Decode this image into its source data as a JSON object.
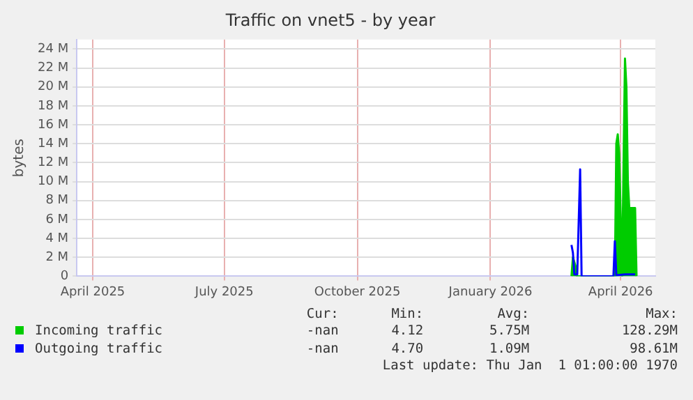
{
  "chart_data": {
    "type": "area",
    "title": "Traffic on vnet5 - by year",
    "ylabel": "bytes",
    "xlim": [
      "2025-03-21",
      "2026-04-25"
    ],
    "xticks": [
      {
        "value": "2025-04-01",
        "label": "April 2025"
      },
      {
        "value": "2025-07-01",
        "label": "July 2025"
      },
      {
        "value": "2025-10-01",
        "label": "October 2025"
      },
      {
        "value": "2026-01-01",
        "label": "January 2026"
      },
      {
        "value": "2026-04-01",
        "label": "April 2026"
      }
    ],
    "ylim": [
      0,
      25
    ],
    "yticks": [
      0,
      {
        "value": 2,
        "label": "2 M"
      },
      {
        "value": 4,
        "label": "4 M"
      },
      {
        "value": 6,
        "label": "6 M"
      },
      {
        "value": 8,
        "label": "8 M"
      },
      {
        "value": 10,
        "label": "10 M"
      },
      {
        "value": 12,
        "label": "12 M"
      },
      {
        "value": 14,
        "label": "14 M"
      },
      {
        "value": 16,
        "label": "16 M"
      },
      {
        "value": 18,
        "label": "18 M"
      },
      {
        "value": 20,
        "label": "20 M"
      },
      {
        "value": 22,
        "label": "22 M"
      },
      {
        "value": 24,
        "label": "24 M"
      }
    ],
    "grid": true,
    "legend": "bottom left",
    "marker": "none",
    "series": [
      {
        "name": "Incoming traffic",
        "type": "area",
        "color": "#00cc00",
        "x": [
          "2026-02-26",
          "2026-02-27",
          "2026-03-01",
          "2026-03-02",
          "2026-03-28",
          "2026-03-29",
          "2026-03-30",
          "2026-03-31",
          "2026-04-02",
          "2026-04-03",
          "2026-04-04",
          "2026-04-05",
          "2026-04-06",
          "2026-04-07",
          "2026-04-09",
          "2026-04-11",
          "2026-04-12"
        ],
        "values": [
          0,
          2,
          1,
          0,
          0,
          14,
          15,
          13,
          0,
          12,
          23,
          20,
          10,
          7.2,
          7.2,
          7.2,
          0
        ]
      },
      {
        "name": "Outgoing traffic",
        "type": "line",
        "color": "#0000ff",
        "x": [
          "2026-02-26",
          "2026-02-27",
          "2026-02-28",
          "2026-03-02",
          "2026-03-04",
          "2026-03-05",
          "2026-03-27",
          "2026-03-28",
          "2026-03-29",
          "2026-04-04",
          "2026-04-11"
        ],
        "values": [
          3.3,
          2.5,
          0.2,
          0.2,
          11.3,
          0,
          0,
          3.7,
          0.1,
          0.2,
          0.2
        ]
      }
    ],
    "annotations": [
      "Cur:",
      "Min:",
      "Avg:",
      "Max:",
      "-nan",
      "4.12",
      "5.75M",
      "128.29M",
      "-nan",
      "4.70",
      "1.09M",
      "98.61M",
      "Last update: Thu Jan  1 01:00:00 1970"
    ]
  }
}
